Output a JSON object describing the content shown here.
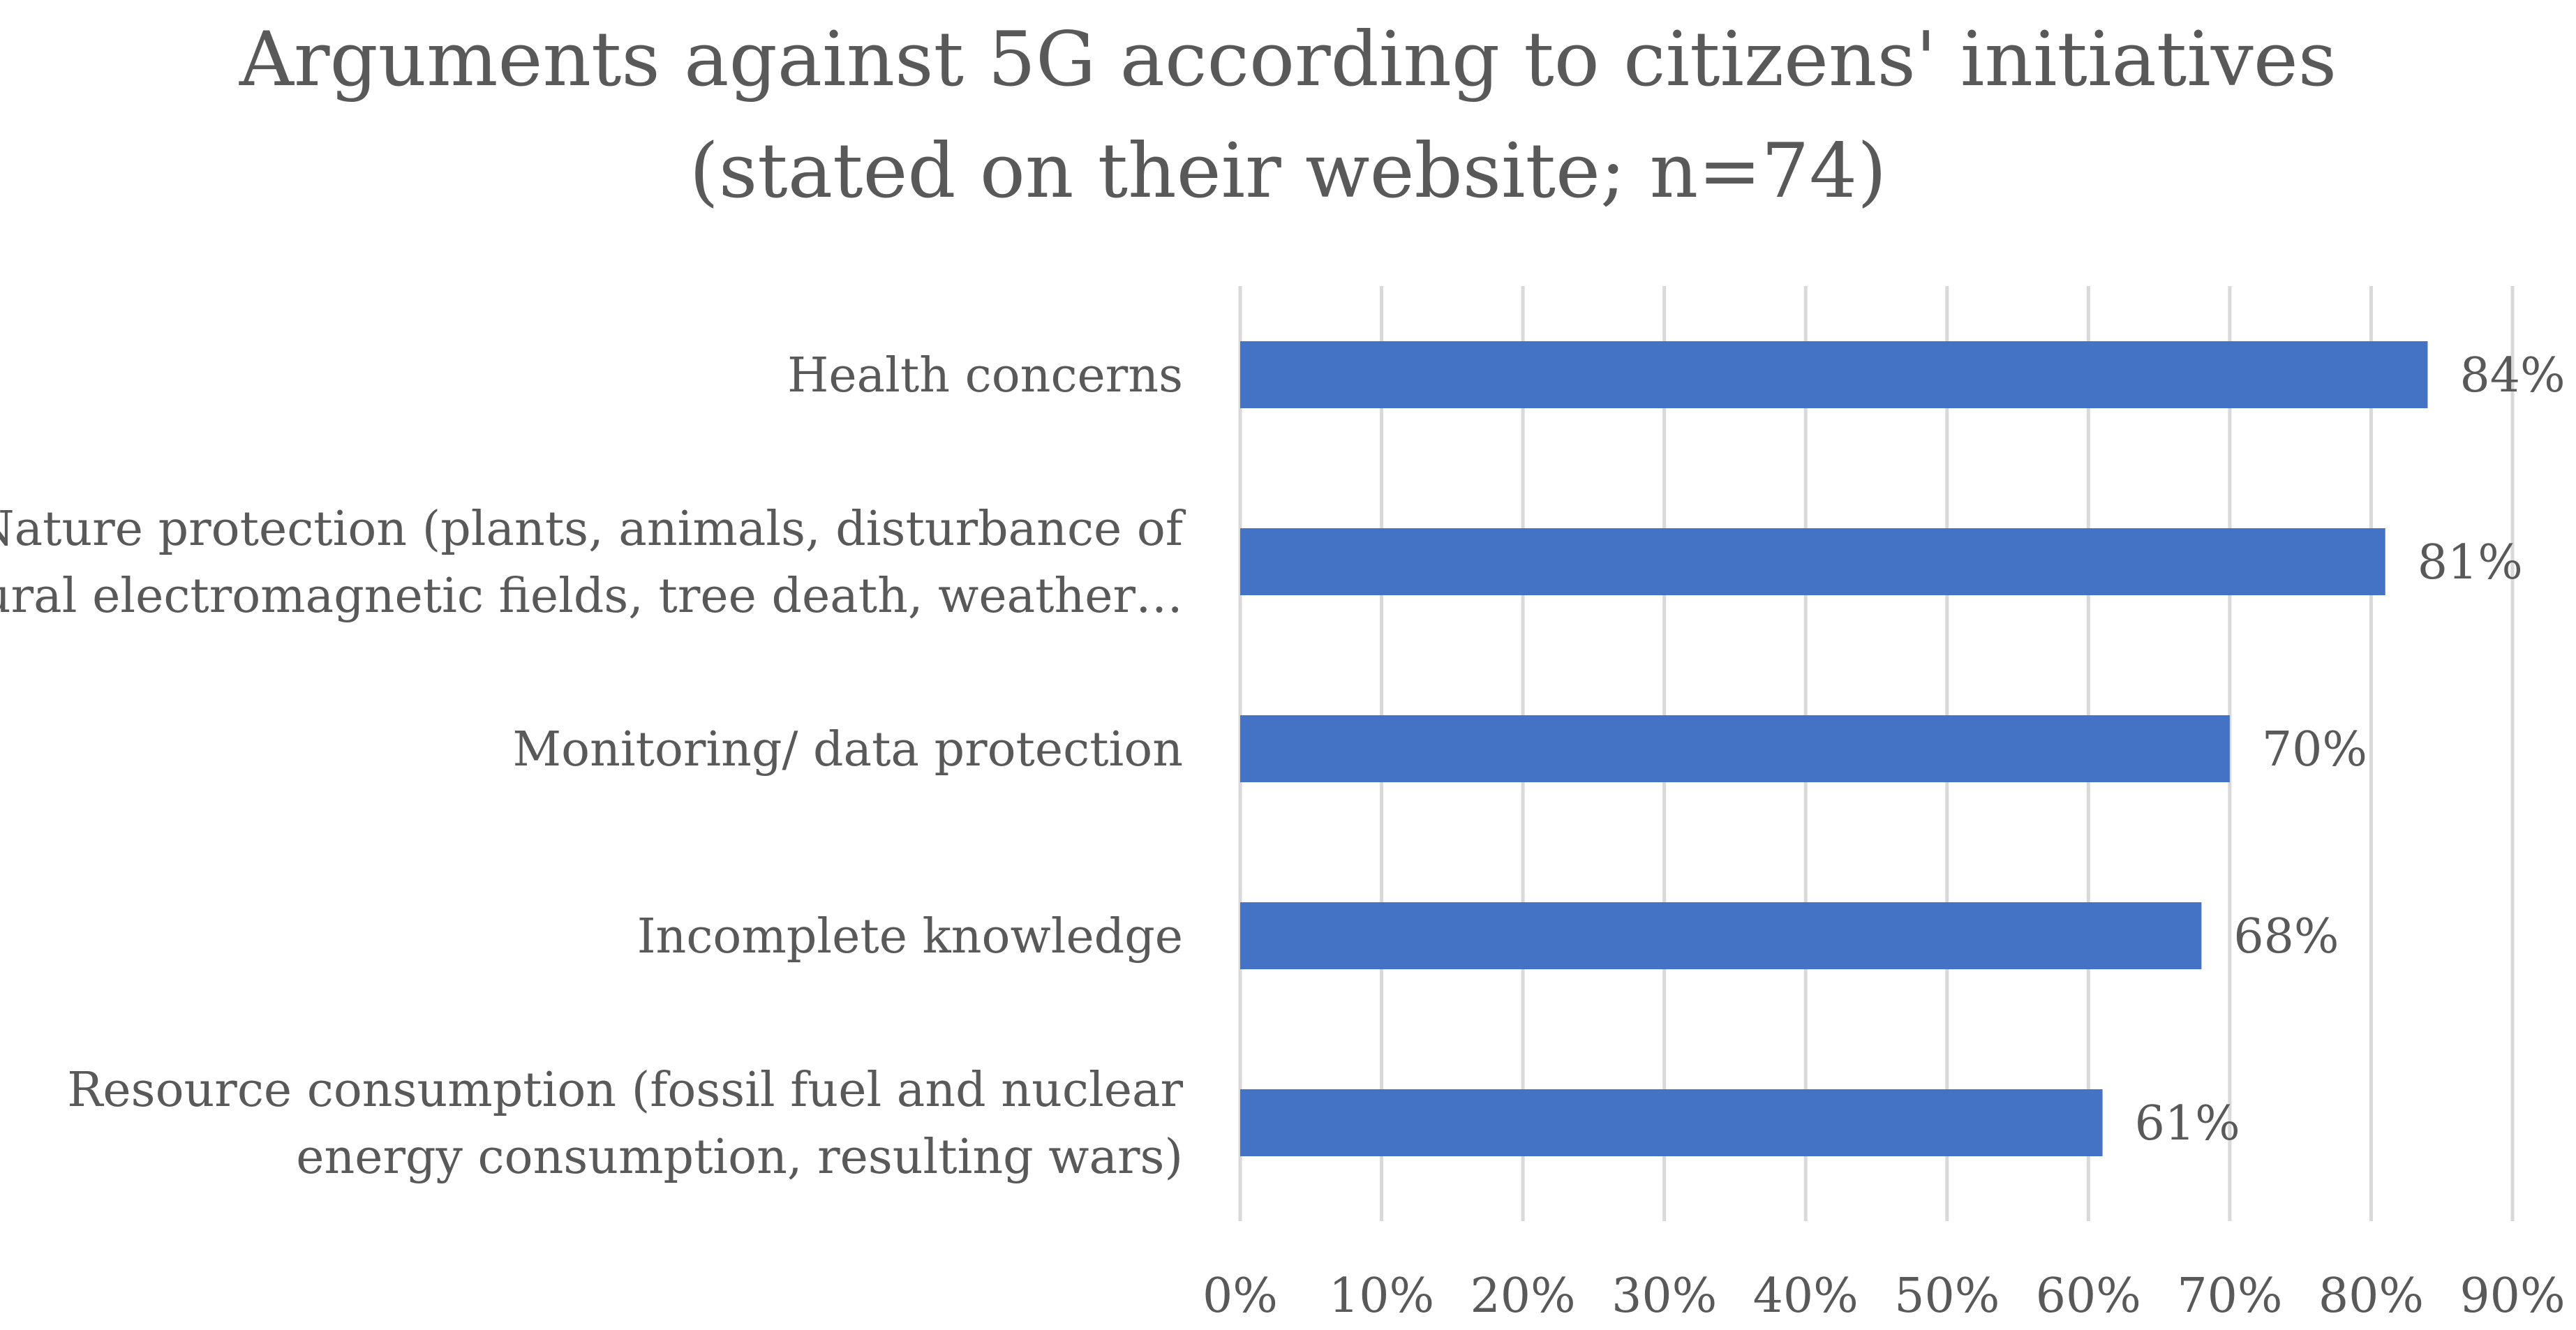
{
  "chart_data": {
    "type": "bar",
    "orientation": "horizontal",
    "title": "Arguments against 5G according to citizens' initiatives",
    "subtitle": "(stated on their website; n=74)",
    "categories": [
      "Health concerns",
      "Nature protection (plants, animals, disturbance of natural electromagnetic fields, tree death, weather…",
      "Monitoring/ data protection",
      "Incomplete knowledge",
      "Resource consumption (fossil fuel and nuclear energy consumption, resulting wars)"
    ],
    "category_lines": [
      [
        "Health concerns"
      ],
      [
        "Nature protection (plants, animals, disturbance of",
        "natural electromagnetic fields, tree death, weather…"
      ],
      [
        "Monitoring/ data protection"
      ],
      [
        "Incomplete knowledge"
      ],
      [
        "Resource consumption (fossil fuel and nuclear",
        "energy consumption, resulting wars)"
      ]
    ],
    "values": [
      84,
      81,
      70,
      68,
      61
    ],
    "value_labels": [
      "84%",
      "81%",
      "70%",
      "68%",
      "61%"
    ],
    "xlim": [
      0,
      90
    ],
    "xticks": [
      0,
      10,
      20,
      30,
      40,
      50,
      60,
      70,
      80,
      90
    ],
    "xtick_labels": [
      "0%",
      "10%",
      "20%",
      "30%",
      "40%",
      "50%",
      "60%",
      "70%",
      "80%",
      "90%"
    ],
    "xlabel": "",
    "ylabel": "",
    "grid": true,
    "legend": "none",
    "colors": {
      "bar": "#4472C4",
      "grid": "#D9D9D9",
      "text": "#595959"
    }
  }
}
